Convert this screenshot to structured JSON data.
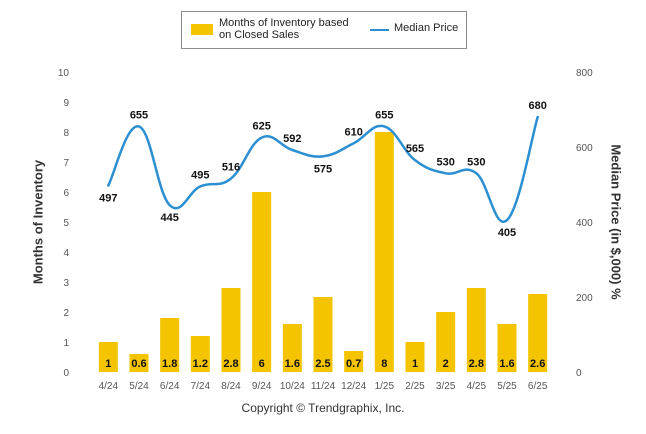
{
  "chart_data": {
    "type": "bar",
    "categories": [
      "4/24",
      "5/24",
      "6/24",
      "7/24",
      "8/24",
      "9/24",
      "10/24",
      "11/24",
      "12/24",
      "1/25",
      "2/25",
      "3/25",
      "4/25",
      "5/25",
      "6/25"
    ],
    "series": [
      {
        "name": "Months of Inventory based on Closed Sales",
        "type": "bar",
        "axis": "left",
        "values": [
          1,
          0.6,
          1.8,
          1.2,
          2.8,
          6,
          1.6,
          2.5,
          0.7,
          8,
          1,
          2,
          2.8,
          1.6,
          2.6
        ],
        "labels": [
          "1",
          "0.6",
          "1.8",
          "1.2",
          "2.8",
          "6",
          "1.6",
          "2.5",
          "0.7",
          "8",
          "1",
          "2",
          "2.8",
          "1.6",
          "2.6"
        ],
        "color": "#f5c400"
      },
      {
        "name": "Median Price",
        "type": "line",
        "axis": "right",
        "values": [
          497,
          655,
          445,
          495,
          516,
          625,
          592,
          575,
          610,
          655,
          565,
          530,
          530,
          405,
          680
        ],
        "labels": [
          "497",
          "655",
          "445",
          "495",
          "516",
          "625",
          "592",
          "575",
          "610",
          "655",
          "565",
          "530",
          "530",
          "405",
          "680"
        ],
        "color": "#2b8fd1"
      }
    ],
    "ylabel": "Months of Inventory",
    "y2label": "Median Price (in $,000) %",
    "ylim": [
      0,
      10
    ],
    "y2lim": [
      0,
      800
    ],
    "yticks": [
      "0",
      "1",
      "2",
      "3",
      "4",
      "5",
      "6",
      "7",
      "8",
      "9",
      "10"
    ],
    "y2ticks": [
      "0",
      "200",
      "400",
      "600",
      "800"
    ],
    "legend": {
      "placement": "top-center",
      "bar_label": "Months of Inventory based on Closed Sales",
      "bar_label_line1": "Months of Inventory based",
      "bar_label_line2": "on Closed Sales",
      "line_label": "Median Price"
    },
    "grid": false,
    "footer": "Copyright © Trendgraphix, Inc."
  }
}
